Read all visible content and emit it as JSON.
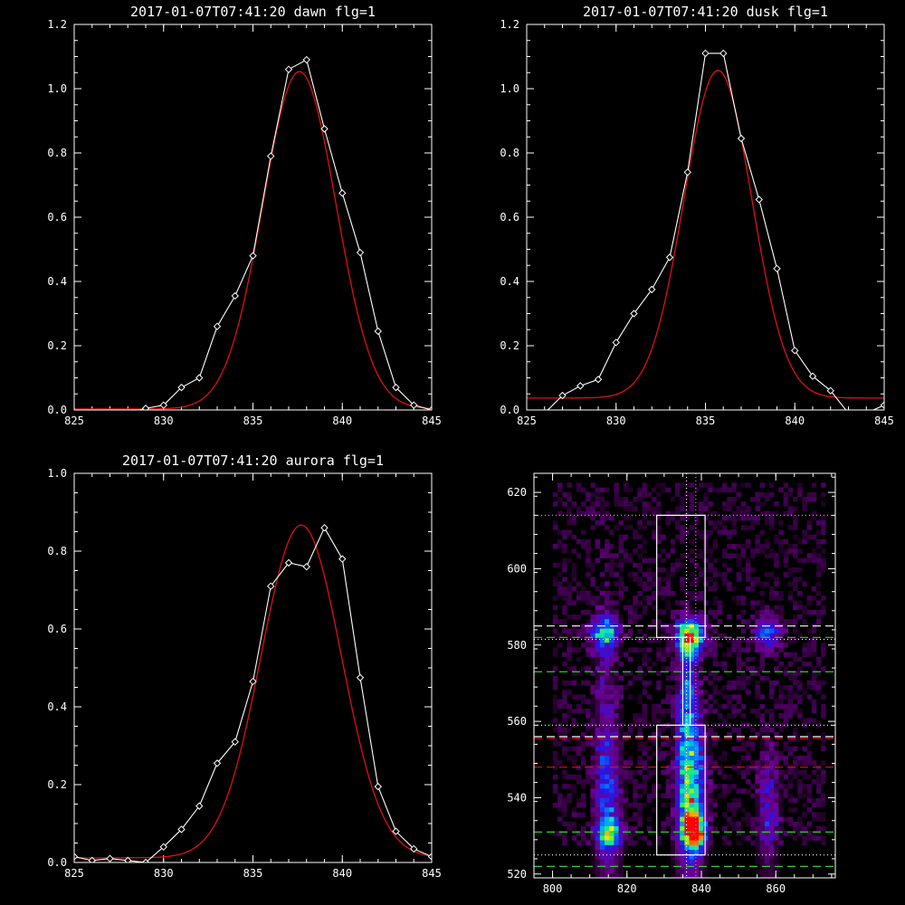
{
  "colors": {
    "background": "#000000",
    "frame": "#ffffff",
    "measured": "#ffffff",
    "fit": "#e01010",
    "green": "#33cc33",
    "magenta": "#ff66ff",
    "white_dash": "#ffffff"
  },
  "chart_data": [
    {
      "type": "line",
      "title": "2017-01-07T07:41:20 dawn flg=1",
      "xlim": [
        825,
        845
      ],
      "ylim": [
        0,
        1.2
      ],
      "xticks": [
        "825",
        "830",
        "835",
        "840",
        "845"
      ],
      "yticks": [
        "0.0",
        "0.2",
        "0.4",
        "0.6",
        "0.8",
        "1.0",
        "1.2"
      ],
      "series": [
        {
          "kind": "measured",
          "marker": "diamond",
          "x": [
            825,
            826,
            827,
            828,
            829,
            830,
            831,
            832,
            833,
            834,
            835,
            836,
            837,
            838,
            839,
            840,
            841,
            842,
            843,
            844,
            845
          ],
          "y": [
            -0.01,
            -0.01,
            -0.01,
            -0.01,
            0.005,
            0.015,
            0.07,
            0.1,
            0.26,
            0.355,
            0.48,
            0.79,
            1.06,
            1.09,
            0.875,
            0.675,
            0.49,
            0.245,
            0.07,
            0.015,
            0.0
          ]
        },
        {
          "kind": "fit",
          "model": "gaussian",
          "center": 837.6,
          "amplitude": 1.05,
          "sigma": 2.05,
          "offset": 0.003
        }
      ]
    },
    {
      "type": "line",
      "title": "2017-01-07T07:41:20 dusk flg=1",
      "xlim": [
        825,
        845
      ],
      "ylim": [
        0,
        1.2
      ],
      "xticks": [
        "825",
        "830",
        "835",
        "840",
        "845"
      ],
      "yticks": [
        "0.0",
        "0.2",
        "0.4",
        "0.6",
        "0.8",
        "1.0",
        "1.2"
      ],
      "series": [
        {
          "kind": "measured",
          "marker": "diamond",
          "x": [
            825,
            826,
            827,
            828,
            829,
            830,
            831,
            832,
            833,
            834,
            835,
            836,
            837,
            838,
            839,
            840,
            841,
            842,
            843,
            844,
            845
          ],
          "y": [
            -0.01,
            -0.01,
            0.045,
            0.075,
            0.095,
            0.21,
            0.3,
            0.375,
            0.475,
            0.74,
            1.11,
            1.11,
            0.845,
            0.655,
            0.44,
            0.185,
            0.105,
            0.06,
            -0.01,
            -0.01,
            0.015
          ]
        },
        {
          "kind": "fit",
          "model": "gaussian",
          "center": 835.7,
          "amplitude": 1.02,
          "sigma": 1.9,
          "offset": 0.037
        }
      ]
    },
    {
      "type": "line",
      "title": "2017-01-07T07:41:20 aurora flg=1",
      "xlim": [
        825,
        845
      ],
      "ylim": [
        0,
        1.0
      ],
      "xticks": [
        "825",
        "830",
        "835",
        "840",
        "845"
      ],
      "yticks": [
        "0.0",
        "0.2",
        "0.4",
        "0.6",
        "0.8",
        "1.0"
      ],
      "series": [
        {
          "kind": "measured",
          "marker": "diamond",
          "x": [
            825,
            826,
            827,
            828,
            829,
            830,
            831,
            832,
            833,
            834,
            835,
            836,
            837,
            838,
            839,
            840,
            841,
            842,
            843,
            844,
            845
          ],
          "y": [
            0.015,
            0.005,
            0.01,
            0.005,
            0.0,
            0.04,
            0.085,
            0.145,
            0.255,
            0.31,
            0.465,
            0.71,
            0.77,
            0.76,
            0.86,
            0.78,
            0.475,
            0.195,
            0.08,
            0.035,
            0.015
          ]
        },
        {
          "kind": "fit",
          "model": "gaussian",
          "center": 837.7,
          "amplitude": 0.855,
          "sigma": 2.25,
          "offset": 0.012
        }
      ]
    },
    {
      "type": "heatmap",
      "xlim": [
        795,
        876
      ],
      "ylim": [
        519,
        625
      ],
      "xticks": [
        "800",
        "820",
        "840",
        "860"
      ],
      "yticks": [
        "520",
        "540",
        "560",
        "580",
        "600",
        "620"
      ],
      "colormap": "rainbow",
      "sources": [
        {
          "x": 814,
          "y": 583,
          "sx": 2.5,
          "sy": 3,
          "amp": 0.55
        },
        {
          "x": 837,
          "y": 582,
          "sx": 2.5,
          "sy": 3,
          "amp": 1.0
        },
        {
          "x": 858,
          "y": 583,
          "sx": 2.5,
          "sy": 3,
          "amp": 0.38
        },
        {
          "x": 837,
          "y": 542,
          "sx": 2.5,
          "sy": 15,
          "amp": 0.7
        },
        {
          "x": 838,
          "y": 531,
          "sx": 2.0,
          "sy": 3,
          "amp": 0.9
        },
        {
          "x": 815,
          "y": 538,
          "sx": 2.5,
          "sy": 15,
          "amp": 0.33
        },
        {
          "x": 815,
          "y": 530,
          "sx": 2.0,
          "sy": 2.5,
          "amp": 0.5
        },
        {
          "x": 858,
          "y": 536,
          "sx": 2.0,
          "sy": 12,
          "amp": 0.25
        },
        {
          "x": 836,
          "y": 568,
          "sx": 1.5,
          "sy": 10,
          "amp": 0.3
        },
        {
          "x": 814,
          "y": 568,
          "sx": 2.0,
          "sy": 20,
          "amp": 0.12
        }
      ],
      "boxes": [
        {
          "x0": 828,
          "x1": 841,
          "y0": 582,
          "y1": 614
        },
        {
          "x0": 828,
          "x1": 841,
          "y0": 525,
          "y1": 559
        },
        {
          "x0": 835,
          "x1": 837,
          "y0": 559,
          "y1": 582
        }
      ],
      "hlines": [
        {
          "y": 614,
          "color": "magenta",
          "style": "dotted"
        },
        {
          "y": 585,
          "color": "white_dash",
          "style": "dashed"
        },
        {
          "y": 582,
          "color": "green",
          "style": "dashed"
        },
        {
          "y": 581.5,
          "color": "white_dash",
          "style": "dotted"
        },
        {
          "y": 573,
          "color": "green",
          "style": "dashed"
        },
        {
          "y": 559,
          "color": "white_dash",
          "style": "dotted"
        },
        {
          "y": 556,
          "color": "white_dash",
          "style": "dashed"
        },
        {
          "y": 555.5,
          "color": "fit",
          "style": "dashed"
        },
        {
          "y": 548,
          "color": "fit",
          "style": "dashed"
        },
        {
          "y": 531,
          "color": "green",
          "style": "dashed"
        },
        {
          "y": 525,
          "color": "white_dash",
          "style": "dotted"
        },
        {
          "y": 522,
          "color": "green",
          "style": "dashed"
        }
      ],
      "vlines": [
        {
          "x": 836,
          "color": "white_dash",
          "style": "dotted"
        },
        {
          "x": 838.5,
          "color": "magenta",
          "style": "dotted"
        }
      ],
      "markers": [
        {
          "x": 837,
          "y": 582.5
        },
        {
          "x": 838,
          "y": 530.5
        }
      ]
    }
  ]
}
